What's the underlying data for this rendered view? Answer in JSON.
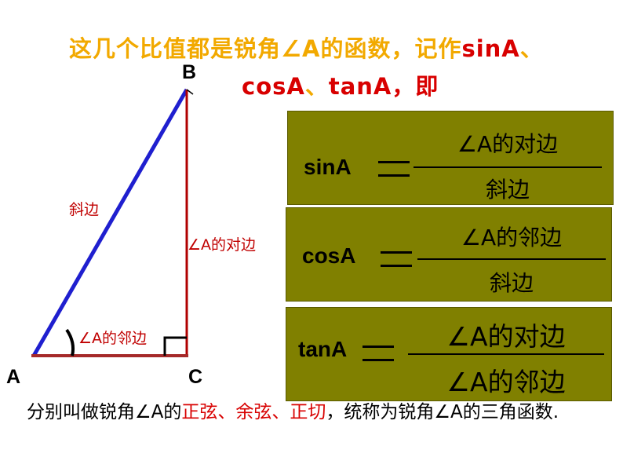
{
  "heading": {
    "part1": "这几个比值都是锐角∠A的函数，记作",
    "sin": "sinA",
    "sep1": "、",
    "cos": "cosA",
    "sep2": "、",
    "tan": "tanA",
    "tail": "，即"
  },
  "triangle": {
    "vertex_a": "A",
    "vertex_b": "B",
    "vertex_c": "C",
    "hypotenuse_label": "斜边",
    "opposite_label": "∠A的对边",
    "adjacent_label": "∠A的邻边",
    "colors": {
      "hypotenuse": "#1f1fcf",
      "legs": "#b00000"
    }
  },
  "formulas": [
    {
      "name": "sinA",
      "numerator": "∠A的对边",
      "denominator": "斜边"
    },
    {
      "name": "cosA",
      "numerator": "∠A的邻边",
      "denominator": "斜边"
    },
    {
      "name": "tanA",
      "numerator": "∠A的对边",
      "denominator": "∠A的邻边"
    }
  ],
  "footer": {
    "part1": "分别叫做锐角∠A的",
    "red1": "正弦",
    "sep1": "、",
    "red2": "余弦",
    "sep2": "、",
    "red3": "正切",
    "part2": "，统称为锐角∠A的三角函数."
  },
  "box_color": "#808000"
}
